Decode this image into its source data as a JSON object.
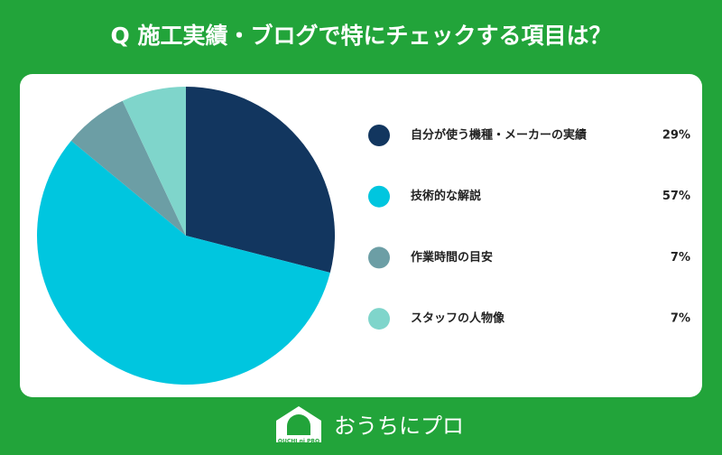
{
  "chart_data": {
    "type": "pie",
    "title": "Q 施工実績・ブログで特にチェックする項目は？",
    "categories": [
      "自分が使う機種・メーカーの実績",
      "技術的な解説",
      "作業時間の目安",
      "スタッフの人物像"
    ],
    "values": [
      29,
      57,
      7,
      7
    ],
    "value_labels": [
      "29%",
      "57%",
      "7%",
      "7%"
    ],
    "colors": [
      "#12365f",
      "#00c6df",
      "#6c9ea5",
      "#7fd5cb"
    ]
  },
  "logo": {
    "text": "おうちにプロ",
    "mark_text": "OUCHI ni PRO"
  }
}
